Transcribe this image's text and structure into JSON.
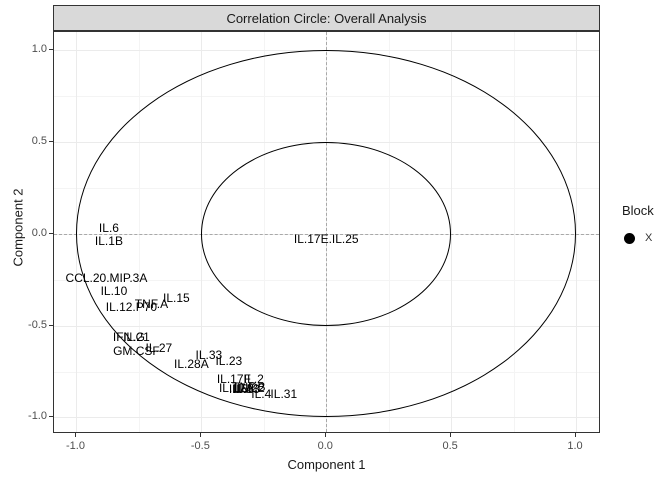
{
  "plot": {
    "strip_title": "Correlation Circle: Overall Analysis",
    "x_axis": {
      "title": "Component 1",
      "tick_labels": [
        "-1.0",
        "-0.5",
        "0.0",
        "0.5",
        "1.0"
      ],
      "tick_values": [
        -1.0,
        -0.5,
        0.0,
        0.5,
        1.0
      ]
    },
    "y_axis": {
      "title": "Component 2",
      "tick_labels": [
        "-1.0",
        "-0.5",
        "0.0",
        "0.5",
        "1.0"
      ],
      "tick_values": [
        -1.0,
        -0.5,
        0.0,
        0.5,
        1.0
      ]
    },
    "legend": {
      "title": "Block",
      "items": [
        {
          "label": "X",
          "marker": "filled-circle",
          "color": "#000000"
        }
      ]
    },
    "colors": {
      "strip_bg": "#D9D9D9",
      "panel_border": "#333333",
      "grid_major": "#EBEBEB",
      "grid_minor": "#F4F4F4",
      "zero_line": "#A8A8A8",
      "circle_stroke": "#000000",
      "label_text": "#000000",
      "tick_text": "#4D4D4D"
    }
  },
  "chart_data": {
    "type": "scatter",
    "title": "Correlation Circle: Overall Analysis",
    "xlabel": "Component 1",
    "ylabel": "Component 2",
    "xlim": [
      -1.09,
      1.1
    ],
    "ylim": [
      -1.09,
      1.1
    ],
    "xticks": [
      -1.0,
      -0.5,
      0.0,
      0.5,
      1.0
    ],
    "yticks": [
      -1.0,
      -0.5,
      0.0,
      0.5,
      1.0
    ],
    "grid": true,
    "zero_lines": "dashed",
    "correlation_circle_radii": [
      0.5,
      1.0
    ],
    "legend_position": "right",
    "legend": {
      "title": "Block",
      "items": [
        "X"
      ]
    },
    "series_style": "text-labels",
    "points": [
      {
        "label": "IL.6",
        "x": -0.87,
        "y": 0.03
      },
      {
        "label": "IL.1B",
        "x": -0.87,
        "y": -0.04
      },
      {
        "label": "CCL.20.MIP.3A",
        "x": -0.88,
        "y": -0.24
      },
      {
        "label": "IL.10",
        "x": -0.85,
        "y": -0.31
      },
      {
        "label": "IL.15",
        "x": -0.6,
        "y": -0.35
      },
      {
        "label": "TNF.A",
        "x": -0.7,
        "y": -0.38
      },
      {
        "label": "IL.12.P70",
        "x": -0.78,
        "y": -0.4
      },
      {
        "label": "IFN.G",
        "x": -0.79,
        "y": -0.56
      },
      {
        "label": "IL.21",
        "x": -0.76,
        "y": -0.56
      },
      {
        "label": "IL.27",
        "x": -0.67,
        "y": -0.62
      },
      {
        "label": "GM.CSF",
        "x": -0.76,
        "y": -0.64
      },
      {
        "label": "IL.33",
        "x": -0.47,
        "y": -0.66
      },
      {
        "label": "IL.23",
        "x": -0.39,
        "y": -0.69
      },
      {
        "label": "IL.28A",
        "x": -0.54,
        "y": -0.71
      },
      {
        "label": "IL.17F",
        "x": -0.37,
        "y": -0.79
      },
      {
        "label": "IL.2",
        "x": -0.29,
        "y": -0.79
      },
      {
        "label": "IL.17A",
        "x": -0.36,
        "y": -0.84
      },
      {
        "label": "IL.5",
        "x": -0.35,
        "y": -0.845
      },
      {
        "label": "IL.9",
        "x": -0.33,
        "y": -0.84
      },
      {
        "label": "IL.13",
        "x": -0.32,
        "y": -0.845
      },
      {
        "label": "TNF.B",
        "x": -0.31,
        "y": -0.835
      },
      {
        "label": "IL.22",
        "x": -0.3,
        "y": -0.84
      },
      {
        "label": "IL.4",
        "x": -0.26,
        "y": -0.87
      },
      {
        "label": "IL.31",
        "x": -0.17,
        "y": -0.87
      },
      {
        "label": "IL.17E.IL.25",
        "x": 0.0,
        "y": -0.03
      }
    ]
  }
}
